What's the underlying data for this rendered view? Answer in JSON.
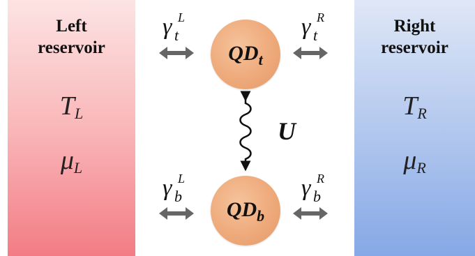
{
  "left_reservoir": {
    "title_line1": "Left",
    "title_line2": "reservoir",
    "temperature": "T",
    "temperature_sub": "L",
    "potential": "μ",
    "potential_sub": "L",
    "color_top": "#fde3e3",
    "color_bottom": "#f37c85"
  },
  "right_reservoir": {
    "title_line1": "Right",
    "title_line2": "reservoir",
    "temperature": "T",
    "temperature_sub": "R",
    "potential": "μ",
    "potential_sub": "R",
    "color_top": "#dfe7f7",
    "color_bottom": "#86a8e6"
  },
  "couplings": {
    "top_left": {
      "symbol": "γ",
      "sub": "t",
      "sup": "L"
    },
    "top_right": {
      "symbol": "γ",
      "sub": "t",
      "sup": "R"
    },
    "bottom_left": {
      "symbol": "γ",
      "sub": "b",
      "sup": "L"
    },
    "bottom_right": {
      "symbol": "γ",
      "sub": "b",
      "sup": "R"
    }
  },
  "dots": {
    "top": {
      "main": "QD",
      "sub": "t"
    },
    "bottom": {
      "main": "QD",
      "sub": "b"
    },
    "color": "#eeaa7b"
  },
  "interaction": {
    "label": "U"
  },
  "arrow_color": "#666666"
}
